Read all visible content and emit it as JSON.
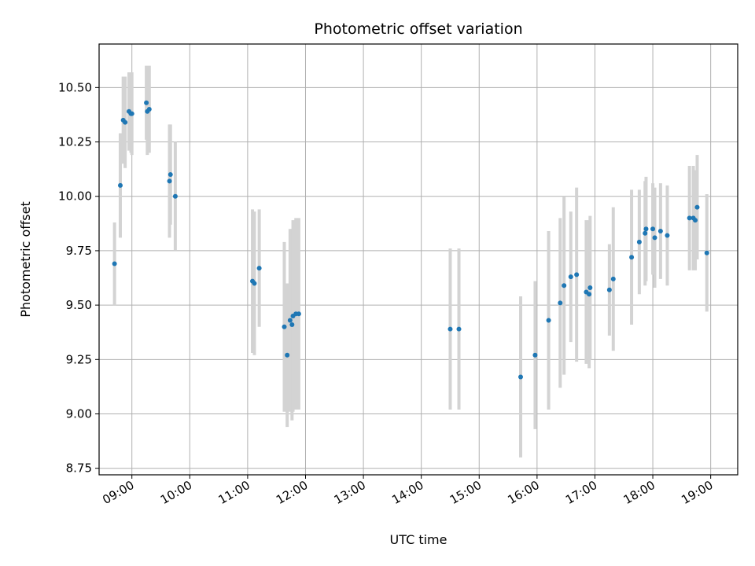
{
  "chart_data": {
    "type": "scatter",
    "title": "Photometric offset variation",
    "xlabel": "UTC time",
    "ylabel": "Photometric offset",
    "xlim": [
      "08:26",
      "19:28"
    ],
    "ylim": [
      8.72,
      10.7
    ],
    "x_ticks": [
      "09:00",
      "10:00",
      "11:00",
      "12:00",
      "13:00",
      "14:00",
      "15:00",
      "16:00",
      "17:00",
      "18:00",
      "19:00"
    ],
    "y_ticks": [
      "8.75",
      "9.00",
      "9.25",
      "9.50",
      "9.75",
      "10.00",
      "10.25",
      "10.50"
    ],
    "grid": true,
    "colors": {
      "point": "#1f77b4",
      "errorbar": "#d3d3d3",
      "grid": "#b0b0b0"
    },
    "series": [
      {
        "x": [
          "08:42",
          "08:48",
          "08:51",
          "08:53",
          "08:57",
          "08:59",
          "09:00",
          "09:15",
          "09:16",
          "09:18",
          "09:39",
          "09:40",
          "09:45",
          "11:05",
          "11:07",
          "11:12",
          "11:38",
          "11:41",
          "11:44",
          "11:46",
          "11:47",
          "11:50",
          "11:53",
          "14:30",
          "14:39",
          "15:43",
          "15:58",
          "16:12",
          "16:24",
          "16:28",
          "16:35",
          "16:41",
          "16:51",
          "16:54",
          "16:55",
          "17:15",
          "17:19",
          "17:38",
          "17:46",
          "17:52",
          "17:53",
          "18:00",
          "18:02",
          "18:08",
          "18:15",
          "18:38",
          "18:42",
          "18:44",
          "18:46",
          "18:56"
        ],
        "y": [
          9.69,
          10.05,
          10.35,
          10.34,
          10.39,
          10.38,
          10.38,
          10.43,
          10.39,
          10.4,
          10.07,
          10.1,
          10.0,
          9.61,
          9.6,
          9.67,
          9.4,
          9.27,
          9.43,
          9.41,
          9.45,
          9.46,
          9.46,
          9.39,
          9.39,
          9.17,
          9.27,
          9.43,
          9.51,
          9.59,
          9.63,
          9.64,
          9.56,
          9.55,
          9.58,
          9.57,
          9.62,
          9.72,
          9.79,
          9.83,
          9.85,
          9.85,
          9.81,
          9.84,
          9.82,
          9.9,
          9.9,
          9.89,
          9.95,
          9.74
        ],
        "yerr": [
          0.19,
          0.24,
          0.2,
          0.21,
          0.18,
          0.18,
          0.19,
          0.17,
          0.2,
          0.2,
          0.26,
          0.23,
          0.25,
          0.33,
          0.33,
          0.27,
          0.39,
          0.33,
          0.42,
          0.44,
          0.44,
          0.44,
          0.44,
          0.37,
          0.37,
          0.37,
          0.34,
          0.41,
          0.39,
          0.41,
          0.3,
          0.4,
          0.33,
          0.34,
          0.33,
          0.21,
          0.33,
          0.31,
          0.24,
          0.24,
          0.24,
          0.21,
          0.23,
          0.22,
          0.23,
          0.24,
          0.24,
          0.23,
          0.24,
          0.27
        ]
      }
    ]
  }
}
